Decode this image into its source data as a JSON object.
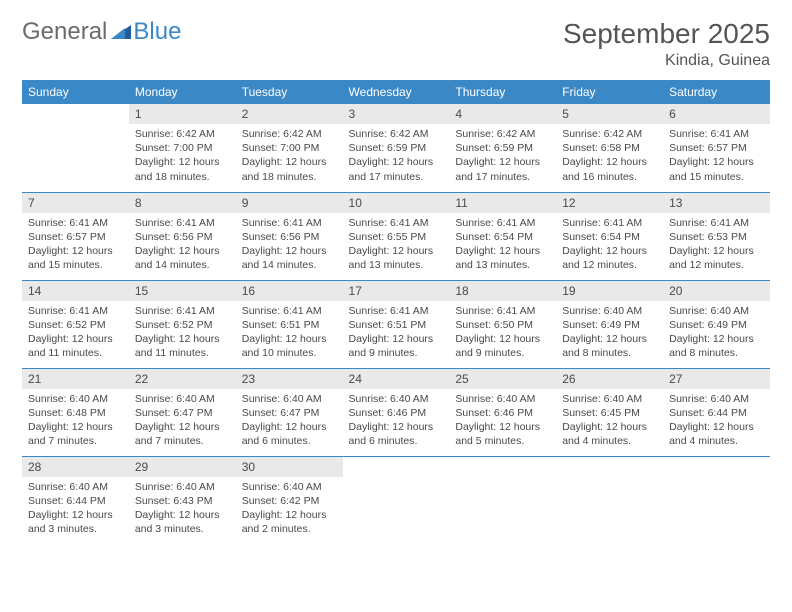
{
  "brand": {
    "part1": "General",
    "part2": "Blue"
  },
  "title": "September 2025",
  "location": "Kindia, Guinea",
  "colors": {
    "header_bg": "#3a88c6",
    "header_text": "#ffffff",
    "date_bg": "#e9e9e9",
    "text": "#4a4a4a",
    "rule": "#3a88c6",
    "logo_gray": "#6b6b6b",
    "logo_blue": "#3a88c6"
  },
  "day_names": [
    "Sunday",
    "Monday",
    "Tuesday",
    "Wednesday",
    "Thursday",
    "Friday",
    "Saturday"
  ],
  "weeks": [
    [
      null,
      {
        "d": "1",
        "sr": "Sunrise: 6:42 AM",
        "ss": "Sunset: 7:00 PM",
        "dl1": "Daylight: 12 hours",
        "dl2": "and 18 minutes."
      },
      {
        "d": "2",
        "sr": "Sunrise: 6:42 AM",
        "ss": "Sunset: 7:00 PM",
        "dl1": "Daylight: 12 hours",
        "dl2": "and 18 minutes."
      },
      {
        "d": "3",
        "sr": "Sunrise: 6:42 AM",
        "ss": "Sunset: 6:59 PM",
        "dl1": "Daylight: 12 hours",
        "dl2": "and 17 minutes."
      },
      {
        "d": "4",
        "sr": "Sunrise: 6:42 AM",
        "ss": "Sunset: 6:59 PM",
        "dl1": "Daylight: 12 hours",
        "dl2": "and 17 minutes."
      },
      {
        "d": "5",
        "sr": "Sunrise: 6:42 AM",
        "ss": "Sunset: 6:58 PM",
        "dl1": "Daylight: 12 hours",
        "dl2": "and 16 minutes."
      },
      {
        "d": "6",
        "sr": "Sunrise: 6:41 AM",
        "ss": "Sunset: 6:57 PM",
        "dl1": "Daylight: 12 hours",
        "dl2": "and 15 minutes."
      }
    ],
    [
      {
        "d": "7",
        "sr": "Sunrise: 6:41 AM",
        "ss": "Sunset: 6:57 PM",
        "dl1": "Daylight: 12 hours",
        "dl2": "and 15 minutes."
      },
      {
        "d": "8",
        "sr": "Sunrise: 6:41 AM",
        "ss": "Sunset: 6:56 PM",
        "dl1": "Daylight: 12 hours",
        "dl2": "and 14 minutes."
      },
      {
        "d": "9",
        "sr": "Sunrise: 6:41 AM",
        "ss": "Sunset: 6:56 PM",
        "dl1": "Daylight: 12 hours",
        "dl2": "and 14 minutes."
      },
      {
        "d": "10",
        "sr": "Sunrise: 6:41 AM",
        "ss": "Sunset: 6:55 PM",
        "dl1": "Daylight: 12 hours",
        "dl2": "and 13 minutes."
      },
      {
        "d": "11",
        "sr": "Sunrise: 6:41 AM",
        "ss": "Sunset: 6:54 PM",
        "dl1": "Daylight: 12 hours",
        "dl2": "and 13 minutes."
      },
      {
        "d": "12",
        "sr": "Sunrise: 6:41 AM",
        "ss": "Sunset: 6:54 PM",
        "dl1": "Daylight: 12 hours",
        "dl2": "and 12 minutes."
      },
      {
        "d": "13",
        "sr": "Sunrise: 6:41 AM",
        "ss": "Sunset: 6:53 PM",
        "dl1": "Daylight: 12 hours",
        "dl2": "and 12 minutes."
      }
    ],
    [
      {
        "d": "14",
        "sr": "Sunrise: 6:41 AM",
        "ss": "Sunset: 6:52 PM",
        "dl1": "Daylight: 12 hours",
        "dl2": "and 11 minutes."
      },
      {
        "d": "15",
        "sr": "Sunrise: 6:41 AM",
        "ss": "Sunset: 6:52 PM",
        "dl1": "Daylight: 12 hours",
        "dl2": "and 11 minutes."
      },
      {
        "d": "16",
        "sr": "Sunrise: 6:41 AM",
        "ss": "Sunset: 6:51 PM",
        "dl1": "Daylight: 12 hours",
        "dl2": "and 10 minutes."
      },
      {
        "d": "17",
        "sr": "Sunrise: 6:41 AM",
        "ss": "Sunset: 6:51 PM",
        "dl1": "Daylight: 12 hours",
        "dl2": "and 9 minutes."
      },
      {
        "d": "18",
        "sr": "Sunrise: 6:41 AM",
        "ss": "Sunset: 6:50 PM",
        "dl1": "Daylight: 12 hours",
        "dl2": "and 9 minutes."
      },
      {
        "d": "19",
        "sr": "Sunrise: 6:40 AM",
        "ss": "Sunset: 6:49 PM",
        "dl1": "Daylight: 12 hours",
        "dl2": "and 8 minutes."
      },
      {
        "d": "20",
        "sr": "Sunrise: 6:40 AM",
        "ss": "Sunset: 6:49 PM",
        "dl1": "Daylight: 12 hours",
        "dl2": "and 8 minutes."
      }
    ],
    [
      {
        "d": "21",
        "sr": "Sunrise: 6:40 AM",
        "ss": "Sunset: 6:48 PM",
        "dl1": "Daylight: 12 hours",
        "dl2": "and 7 minutes."
      },
      {
        "d": "22",
        "sr": "Sunrise: 6:40 AM",
        "ss": "Sunset: 6:47 PM",
        "dl1": "Daylight: 12 hours",
        "dl2": "and 7 minutes."
      },
      {
        "d": "23",
        "sr": "Sunrise: 6:40 AM",
        "ss": "Sunset: 6:47 PM",
        "dl1": "Daylight: 12 hours",
        "dl2": "and 6 minutes."
      },
      {
        "d": "24",
        "sr": "Sunrise: 6:40 AM",
        "ss": "Sunset: 6:46 PM",
        "dl1": "Daylight: 12 hours",
        "dl2": "and 6 minutes."
      },
      {
        "d": "25",
        "sr": "Sunrise: 6:40 AM",
        "ss": "Sunset: 6:46 PM",
        "dl1": "Daylight: 12 hours",
        "dl2": "and 5 minutes."
      },
      {
        "d": "26",
        "sr": "Sunrise: 6:40 AM",
        "ss": "Sunset: 6:45 PM",
        "dl1": "Daylight: 12 hours",
        "dl2": "and 4 minutes."
      },
      {
        "d": "27",
        "sr": "Sunrise: 6:40 AM",
        "ss": "Sunset: 6:44 PM",
        "dl1": "Daylight: 12 hours",
        "dl2": "and 4 minutes."
      }
    ],
    [
      {
        "d": "28",
        "sr": "Sunrise: 6:40 AM",
        "ss": "Sunset: 6:44 PM",
        "dl1": "Daylight: 12 hours",
        "dl2": "and 3 minutes."
      },
      {
        "d": "29",
        "sr": "Sunrise: 6:40 AM",
        "ss": "Sunset: 6:43 PM",
        "dl1": "Daylight: 12 hours",
        "dl2": "and 3 minutes."
      },
      {
        "d": "30",
        "sr": "Sunrise: 6:40 AM",
        "ss": "Sunset: 6:42 PM",
        "dl1": "Daylight: 12 hours",
        "dl2": "and 2 minutes."
      },
      null,
      null,
      null,
      null
    ]
  ]
}
